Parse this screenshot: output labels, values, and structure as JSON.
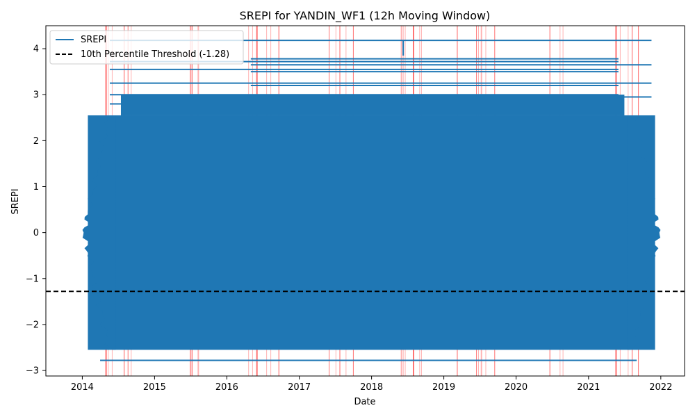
{
  "chart_data": {
    "type": "line",
    "title": "SREPI for YANDIN_WF1 (12h Moving Window)",
    "xlabel": "Date",
    "ylabel": "SREPI",
    "x_ticks": [
      "2014",
      "2015",
      "2016",
      "2017",
      "2018",
      "2019",
      "2020",
      "2021",
      "2022"
    ],
    "x_range": [
      "2013-07-01",
      "2022-05-01"
    ],
    "y_ticks": [
      -3,
      -2,
      -1,
      0,
      1,
      2,
      3,
      4
    ],
    "ylim": [
      -3.12,
      4.5
    ],
    "grid": false,
    "legend_placement": "upper-left",
    "series": [
      {
        "name": "SREPI",
        "color": "#1f77b4",
        "x_start": "2014-01-01",
        "x_end": "2021-12-31",
        "typical_min": -2.55,
        "typical_max": 2.55,
        "outlier_values": [
          4.18,
          3.78,
          3.72,
          3.65,
          3.55,
          3.5,
          3.25,
          3.2,
          3.0,
          2.95,
          2.8,
          -2.78
        ]
      }
    ],
    "threshold": {
      "label": "10th Percentile Threshold (-1.28)",
      "value": -1.28,
      "color": "#000000"
    },
    "drought_periods": [
      "2014-05-01",
      "2014-05-12",
      "2014-06-01",
      "2014-08-01",
      "2014-08-20",
      "2014-09-05",
      "2015-07-01",
      "2015-07-05",
      "2015-07-10",
      "2015-08-10",
      "2016-04-20",
      "2016-05-10",
      "2016-06-01",
      "2016-07-20",
      "2016-08-10",
      "2016-09-20",
      "2017-06-01",
      "2017-07-05",
      "2017-07-25",
      "2017-08-25",
      "2017-10-01",
      "2018-06-01",
      "2018-06-10",
      "2018-06-20",
      "2018-08-01",
      "2018-09-01",
      "2018-09-10",
      "2019-03-10",
      "2019-06-15",
      "2019-06-25",
      "2019-07-10",
      "2019-08-01",
      "2019-09-15",
      "2020-06-20",
      "2020-08-10",
      "2020-08-25",
      "2021-05-20",
      "2021-06-10",
      "2021-07-20",
      "2021-08-10",
      "2021-09-10"
    ]
  }
}
